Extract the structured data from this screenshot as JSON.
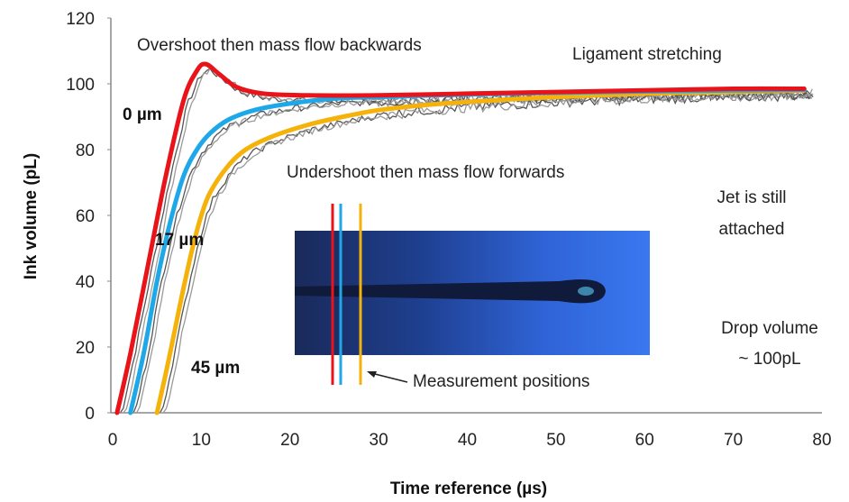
{
  "chart_data": {
    "type": "line",
    "xlabel": "Time reference (µs)",
    "ylabel": "Ink volume (pL)",
    "xlim": [
      0,
      80
    ],
    "ylim": [
      0,
      120
    ],
    "xticks": [
      0,
      10,
      20,
      30,
      40,
      50,
      60,
      70,
      80
    ],
    "yticks": [
      0,
      20,
      40,
      60,
      80,
      100,
      120
    ],
    "grid": false,
    "series": [
      {
        "name": "0 µm",
        "color": "#e8141a",
        "points": [
          [
            0.5,
            0
          ],
          [
            2,
            18
          ],
          [
            4,
            45
          ],
          [
            6,
            72
          ],
          [
            8,
            95
          ],
          [
            9.5,
            104
          ],
          [
            10.5,
            106
          ],
          [
            12,
            103
          ],
          [
            14,
            99
          ],
          [
            17,
            97
          ],
          [
            22,
            96.5
          ],
          [
            30,
            96.5
          ],
          [
            40,
            97
          ],
          [
            50,
            97.5
          ],
          [
            60,
            98
          ],
          [
            70,
            98.5
          ],
          [
            78,
            98.5
          ]
        ]
      },
      {
        "name": "17 µm",
        "color": "#1fa8e8",
        "points": [
          [
            2,
            0
          ],
          [
            3.5,
            18
          ],
          [
            5,
            40
          ],
          [
            6.5,
            58
          ],
          [
            8,
            72
          ],
          [
            9.5,
            80
          ],
          [
            11,
            85
          ],
          [
            13,
            89
          ],
          [
            16,
            92
          ],
          [
            20,
            94
          ],
          [
            25,
            95.5
          ],
          [
            30,
            96
          ],
          [
            40,
            96.8
          ],
          [
            50,
            97.3
          ],
          [
            60,
            97.7
          ],
          [
            70,
            98
          ],
          [
            78,
            98.2
          ]
        ]
      },
      {
        "name": "45 µm",
        "color": "#f5b20a",
        "points": [
          [
            5,
            0
          ],
          [
            6,
            12
          ],
          [
            7,
            25
          ],
          [
            8,
            38
          ],
          [
            9,
            50
          ],
          [
            10,
            60
          ],
          [
            11,
            67
          ],
          [
            13,
            75
          ],
          [
            15,
            80
          ],
          [
            18,
            84
          ],
          [
            22,
            87.5
          ],
          [
            26,
            90
          ],
          [
            30,
            92
          ],
          [
            35,
            93.5
          ],
          [
            40,
            94.5
          ],
          [
            50,
            96
          ],
          [
            60,
            97
          ],
          [
            70,
            97.5
          ],
          [
            78,
            98
          ]
        ]
      }
    ],
    "annotations": [
      "Overshoot then mass flow backwards",
      "Ligament stretching",
      "Undershoot then mass flow forwards",
      "Jet is still",
      "attached",
      "Drop volume",
      "~ 100pL",
      "Measurement positions",
      "0 µm",
      "17 µm",
      "45 µm"
    ]
  }
}
